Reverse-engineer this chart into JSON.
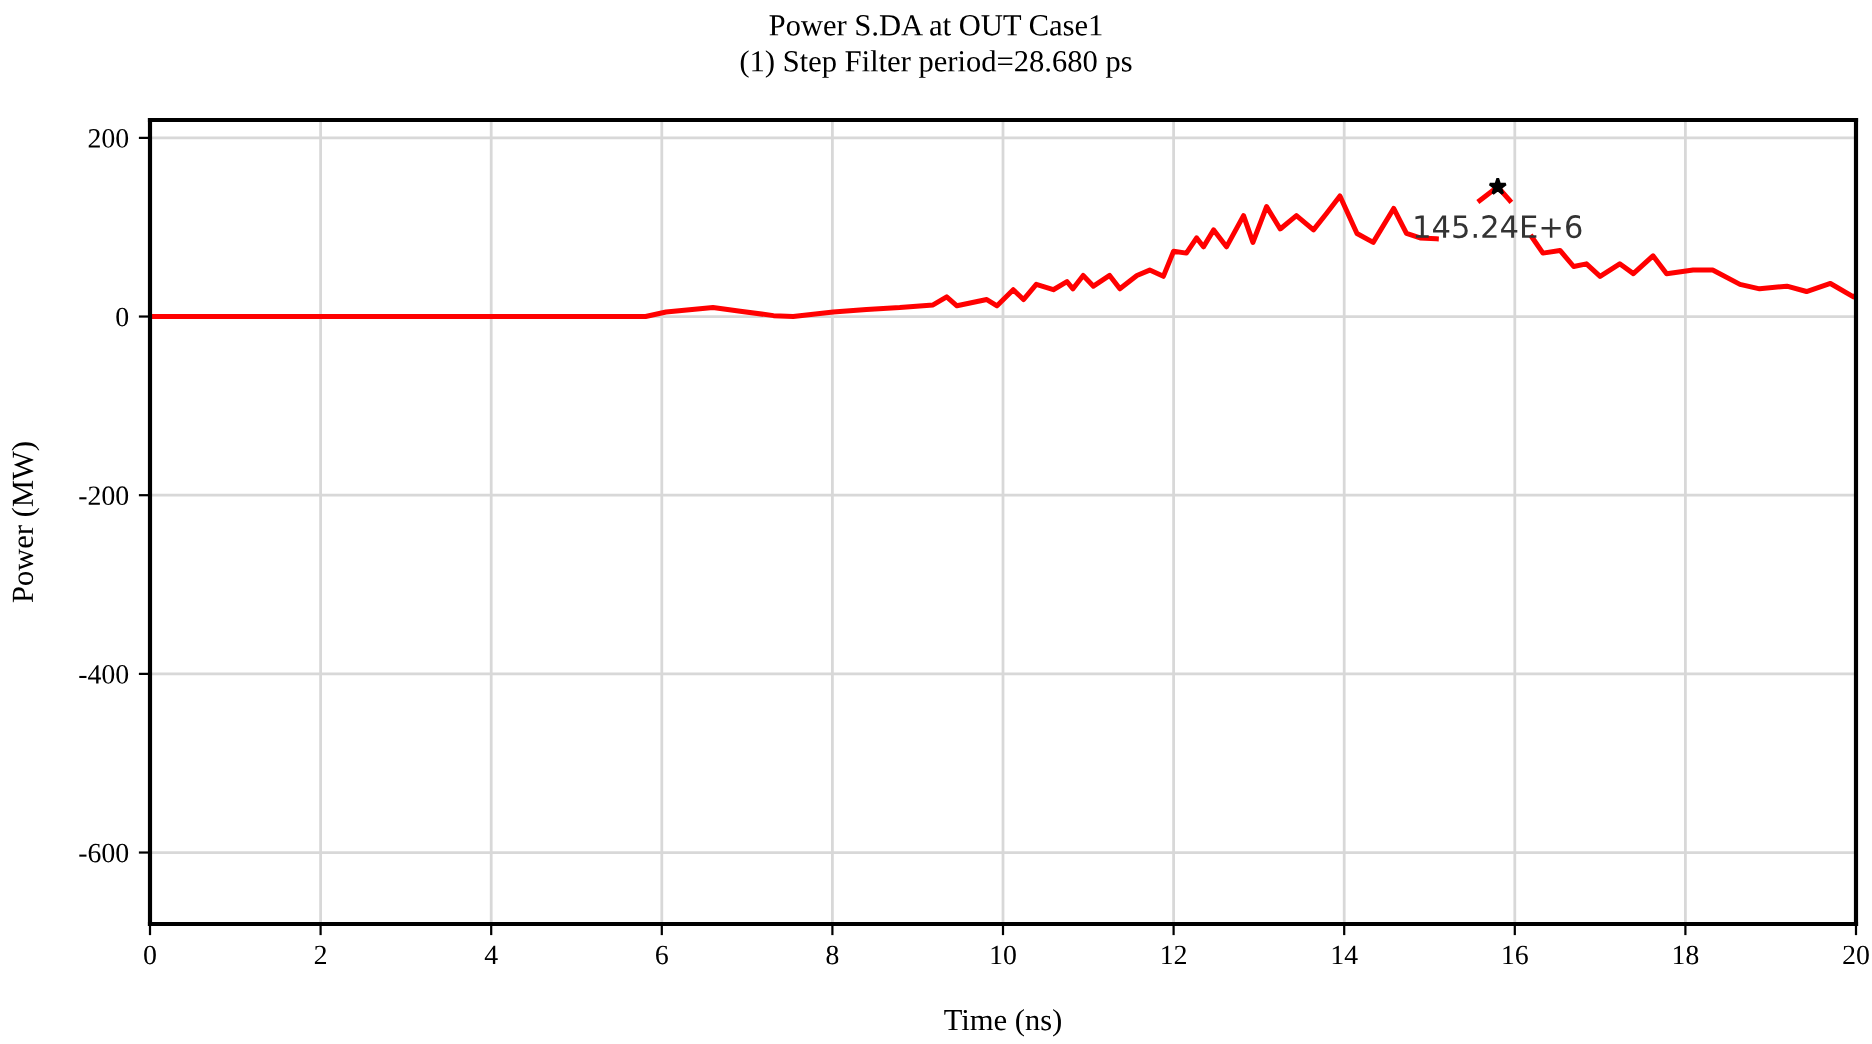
{
  "chart_data": {
    "type": "line",
    "title": "Power S.DA at OUT Case1",
    "subtitle": "(1) Step Filter period=28.680 ps",
    "xlabel": "Time (ns)",
    "ylabel": "Power (MW)",
    "xlim": [
      0,
      20
    ],
    "xticks": [
      0,
      2,
      4,
      6,
      8,
      10,
      12,
      14,
      16,
      18,
      20
    ],
    "ylim": [
      -680,
      220
    ],
    "yticks": [
      -600,
      -400,
      -200,
      0,
      200
    ],
    "grid": true,
    "series": [
      {
        "color": "#ff0000",
        "x": [
          0,
          5.28,
          5.81,
          6.05,
          6.6,
          6.92,
          7.31,
          7.54,
          8.01,
          8.4,
          8.79,
          9.18,
          9.34,
          9.46,
          9.81,
          9.93,
          10.12,
          10.24,
          10.39,
          10.59,
          10.75,
          10.82,
          10.94,
          11.06,
          11.25,
          11.37,
          11.57,
          11.72,
          11.88,
          12.0,
          12.15,
          12.27,
          12.35,
          12.47,
          12.62,
          12.82,
          12.93,
          13.09,
          13.25,
          13.44,
          13.64,
          13.79,
          13.95,
          14.15,
          14.34,
          14.58,
          14.73,
          14.89,
          15.08,
          15.3,
          15.59,
          15.8,
          15.94,
          16.05,
          16.2,
          16.33,
          16.53,
          16.69,
          16.84,
          17.0,
          17.23,
          17.39,
          17.62,
          17.78,
          18.09,
          18.32,
          18.64,
          18.87,
          19.19,
          19.42,
          19.7,
          19.97,
          20
        ],
        "values": [
          0,
          0,
          0,
          5,
          10,
          6,
          1,
          0,
          5,
          8,
          10,
          13,
          22,
          12,
          19,
          12,
          30,
          19,
          36,
          30,
          39,
          31,
          46,
          34,
          46,
          31,
          46,
          52,
          45,
          73,
          71,
          88,
          78,
          97,
          78,
          113,
          83,
          123,
          98,
          113,
          97,
          115,
          135,
          93,
          83,
          121,
          93,
          88,
          87,
          null,
          130,
          145.24,
          130,
          null,
          89,
          71,
          74,
          56,
          59,
          45,
          59,
          48,
          68,
          48,
          52,
          52,
          36,
          31,
          34,
          28,
          37,
          22,
          24
        ]
      }
    ],
    "annotations": [
      {
        "text": "145.24E+6",
        "x": 15.8,
        "y": 145.24
      }
    ]
  }
}
